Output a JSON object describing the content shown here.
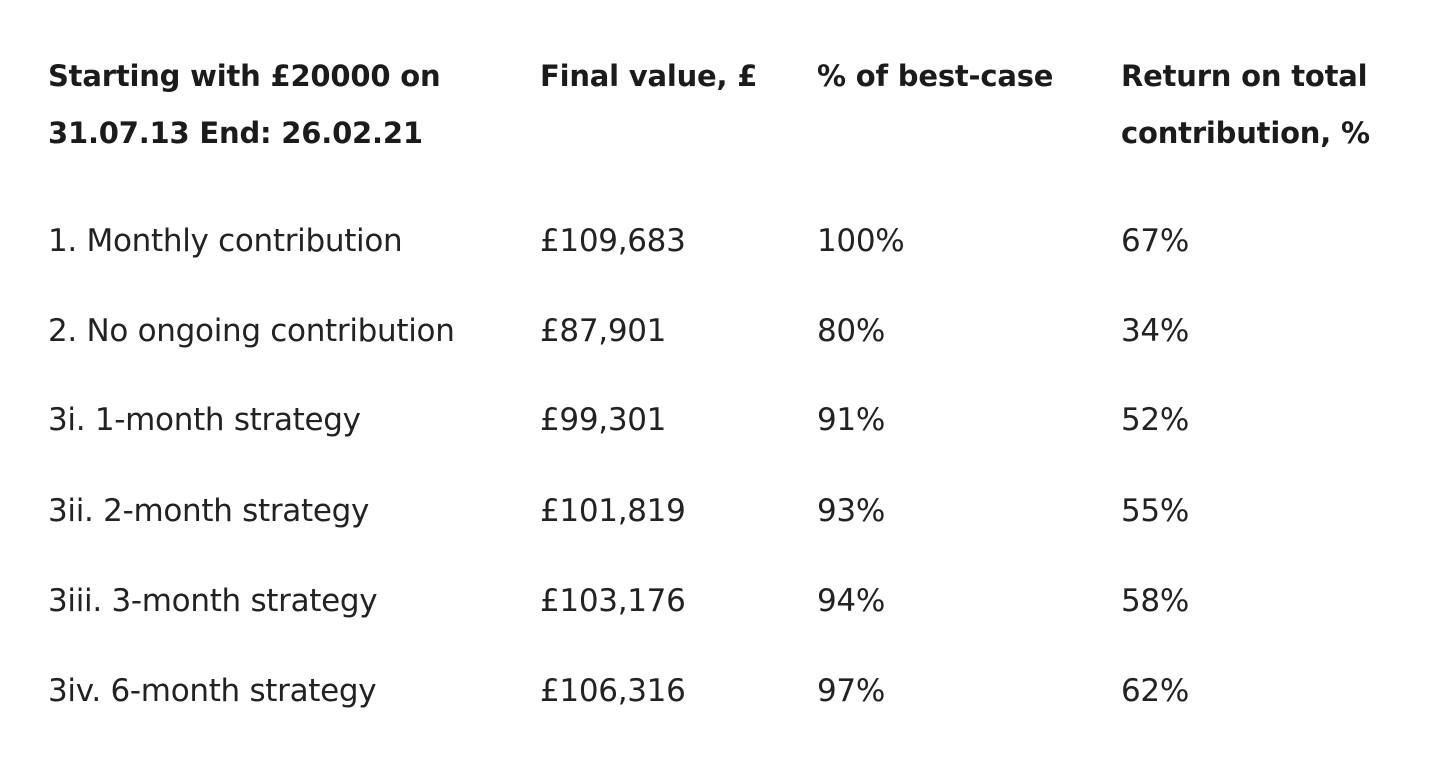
{
  "table": {
    "headers": [
      "Starting with £20000 on 31.07.13 End: 26.02.21",
      "Final value, £",
      "% of best-case",
      "Return on total contribution, %"
    ],
    "rows": [
      [
        "1. Monthly contribution",
        "£109,683",
        "100%",
        "67%"
      ],
      [
        "2. No ongoing contribution",
        "£87,901",
        "80%",
        "34%"
      ],
      [
        "3i. 1-month strategy",
        "£99,301",
        "91%",
        "52%"
      ],
      [
        "3ii. 2-month strategy",
        "£101,819",
        "93%",
        "55%"
      ],
      [
        "3iii. 3-month strategy",
        "£103,176",
        "94%",
        "58%"
      ],
      [
        "3iv. 6-month strategy",
        "£106,316",
        "97%",
        "62%"
      ]
    ]
  }
}
